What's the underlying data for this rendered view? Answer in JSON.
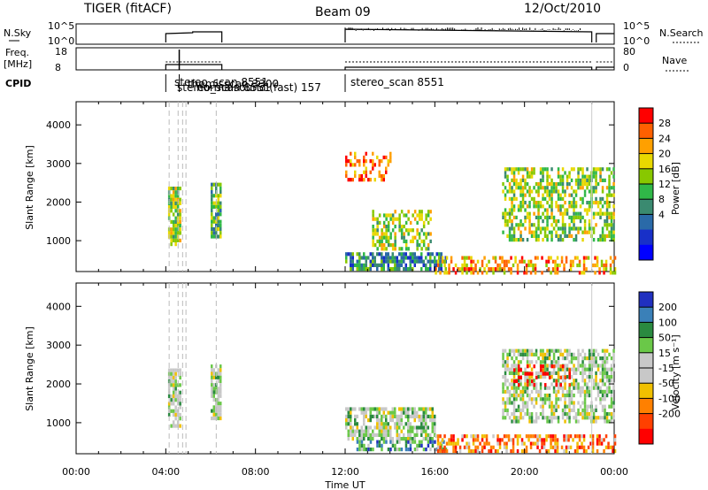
{
  "header": {
    "radar": "TIGER (fitACF)",
    "beam": "Beam 09",
    "date": "12/Oct/2010"
  },
  "summary_panels": {
    "nsky": {
      "left_label": "N.Sky",
      "left_ticks": [
        "10^5",
        "10^0"
      ],
      "right_ticks": [
        "10^5",
        "10^0"
      ],
      "right_label": "N.Search"
    },
    "freq": {
      "left_label_1": "Freq.",
      "left_label_2": "[MHz]",
      "left_ticks": [
        "18",
        "8"
      ],
      "right_ticks": [
        "80",
        "0"
      ],
      "right_label": "Nave"
    },
    "cpid": {
      "label": "CPID",
      "entries": [
        "stereo_scan 8551",
        "stereo_scan 8551",
        "themisscan 3300",
        "normalsound (fast) 157",
        "stereo_scan 8551"
      ]
    }
  },
  "chart_data": [
    {
      "type": "heatmap",
      "panel": "power",
      "ylabel": "Slant Range [km]",
      "yticks": [
        1000,
        2000,
        3000,
        4000
      ],
      "ylim": [
        200,
        4600
      ],
      "xlim_hours": [
        0,
        24
      ],
      "xticks": [
        "00:00",
        "04:00",
        "08:00",
        "12:00",
        "16:00",
        "20:00",
        "00:00"
      ],
      "colorbar": {
        "label": "Power [dB]",
        "ticks": [
          "28",
          "24",
          "20",
          "16",
          "12",
          "8",
          "4"
        ],
        "colors": [
          "#ff0000",
          "#ff6000",
          "#ffa000",
          "#e8d800",
          "#88c800",
          "#30b848",
          "#3a8a70",
          "#2a6aa8",
          "#1830c8",
          "#0000ff"
        ]
      },
      "scatter_regions": [
        {
          "t0": 4.1,
          "t1": 4.6,
          "r0": 900,
          "r1": 2400,
          "level": 4,
          "density": 0.8
        },
        {
          "t0": 6.0,
          "t1": 6.4,
          "r0": 1100,
          "r1": 2500,
          "level": 5,
          "density": 0.8
        },
        {
          "t0": 12.0,
          "t1": 16.5,
          "r0": 250,
          "r1": 700,
          "level": 6,
          "density": 0.7
        },
        {
          "t0": 13.2,
          "t1": 15.8,
          "r0": 800,
          "r1": 1800,
          "level": 4,
          "density": 0.5
        },
        {
          "t0": 12.0,
          "t1": 14.0,
          "r0": 2600,
          "r1": 3300,
          "level": 1,
          "density": 0.3
        },
        {
          "t0": 19.0,
          "t1": 24.0,
          "r0": 1000,
          "r1": 2900,
          "level": 4,
          "density": 0.55
        },
        {
          "t0": 16.0,
          "t1": 24.0,
          "r0": 200,
          "r1": 600,
          "level": 2,
          "density": 0.45
        }
      ]
    },
    {
      "type": "heatmap",
      "panel": "velocity",
      "ylabel": "Slant Range [km]",
      "yticks": [
        1000,
        2000,
        3000,
        4000
      ],
      "ylim": [
        200,
        4600
      ],
      "xlim_hours": [
        0,
        24
      ],
      "xlabel": "Time UT",
      "colorbar": {
        "label": "Velocity [m s⁻¹]",
        "ticks": [
          "200",
          "100",
          "50",
          "15",
          "-15",
          "-50",
          "-100",
          "-200"
        ],
        "colors": [
          "#2030c0",
          "#3a80b8",
          "#2a8a40",
          "#6ac848",
          "#c8c8c8",
          "#c8c8c8",
          "#f0c000",
          "#ff8000",
          "#ff4000",
          "#ff0000"
        ]
      },
      "scatter_regions": [
        {
          "t0": 4.1,
          "t1": 4.6,
          "r0": 900,
          "r1": 2400,
          "level": 4,
          "density": 0.8
        },
        {
          "t0": 6.0,
          "t1": 6.4,
          "r0": 1100,
          "r1": 2500,
          "level": 4,
          "density": 0.8
        },
        {
          "t0": 12.0,
          "t1": 16.0,
          "r0": 600,
          "r1": 1400,
          "level": 4,
          "density": 0.7
        },
        {
          "t0": 12.5,
          "t1": 16.5,
          "r0": 300,
          "r1": 550,
          "level": 2,
          "density": 0.6
        },
        {
          "t0": 16.0,
          "t1": 24.0,
          "r0": 250,
          "r1": 700,
          "level": 7,
          "density": 0.55
        },
        {
          "t0": 19.0,
          "t1": 24.0,
          "r0": 1000,
          "r1": 2900,
          "level": 4,
          "density": 0.6
        },
        {
          "t0": 19.5,
          "t1": 22.0,
          "r0": 2000,
          "r1": 2500,
          "level": 9,
          "density": 0.25
        }
      ]
    }
  ]
}
